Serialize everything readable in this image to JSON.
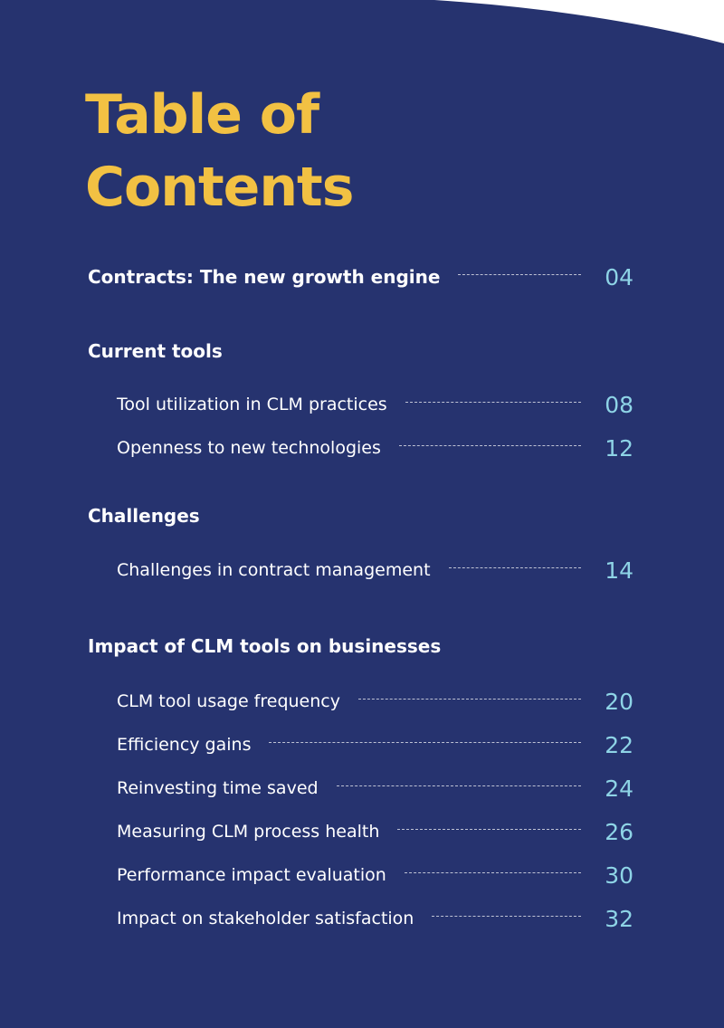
{
  "title": [
    "Table of",
    "Contents"
  ],
  "entries": [
    {
      "level": 1,
      "label": "Contracts: The new growth engine",
      "page": "04"
    },
    {
      "level": 1,
      "label": "Current tools"
    },
    {
      "level": 2,
      "label": "Tool utilization in CLM practices",
      "page": "08"
    },
    {
      "level": 2,
      "label": "Openness to new technologies",
      "page": "12"
    },
    {
      "level": 1,
      "label": "Challenges"
    },
    {
      "level": 2,
      "label": "Challenges in contract management",
      "page": "14"
    },
    {
      "level": 1,
      "label": "Impact of CLM tools on businesses"
    },
    {
      "level": 2,
      "label": "CLM tool usage frequency",
      "page": "20"
    },
    {
      "level": 2,
      "label": "Efficiency gains",
      "page": "22"
    },
    {
      "level": 2,
      "label": "Reinvesting time saved",
      "page": "24"
    },
    {
      "level": 2,
      "label": "Measuring CLM process health",
      "page": "26"
    },
    {
      "level": 2,
      "label": "Performance impact evaluation",
      "page": "30"
    },
    {
      "level": 2,
      "label": "Impact on stakeholder satisfaction",
      "page": "32"
    }
  ]
}
